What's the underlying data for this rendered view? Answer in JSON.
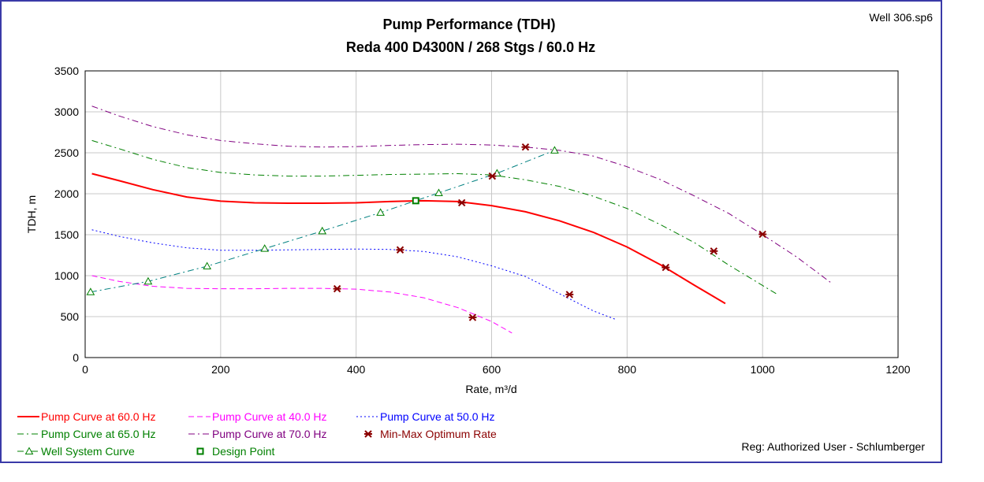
{
  "file_label": "Well 306.sp6",
  "footer": "Reg: Authorized User - Schlumberger",
  "chart_data": {
    "type": "line",
    "title": "Pump Performance (TDH)",
    "subtitle": "Reda 400 D4300N / 268 Stgs / 60.0 Hz",
    "xlabel": "Rate, m³/d",
    "ylabel": "TDH, m",
    "xlim": [
      0,
      1200
    ],
    "ylim": [
      0,
      3500
    ],
    "xticks": [
      0,
      200,
      400,
      600,
      800,
      1000,
      1200
    ],
    "yticks": [
      0,
      500,
      1000,
      1500,
      2000,
      2500,
      3000,
      3500
    ],
    "grid": true,
    "legend_position": "bottom",
    "series": [
      {
        "name": "Pump Curve at 60.0 Hz",
        "color": "#ff0000",
        "style": "solid",
        "x": [
          10,
          50,
          100,
          150,
          200,
          250,
          300,
          350,
          400,
          450,
          500,
          550,
          600,
          650,
          700,
          750,
          800,
          850,
          900,
          945
        ],
        "y": [
          2245,
          2160,
          2050,
          1960,
          1910,
          1890,
          1885,
          1885,
          1890,
          1905,
          1915,
          1905,
          1855,
          1780,
          1670,
          1530,
          1350,
          1130,
          880,
          660
        ]
      },
      {
        "name": "Pump Curve at 40.0 Hz",
        "color": "#ff00ff",
        "style": "dash",
        "x": [
          10,
          50,
          100,
          150,
          200,
          250,
          300,
          350,
          400,
          450,
          500,
          550,
          600,
          630
        ],
        "y": [
          1000,
          930,
          870,
          845,
          840,
          840,
          845,
          845,
          835,
          800,
          730,
          610,
          440,
          300
        ]
      },
      {
        "name": "Pump Curve at 50.0 Hz",
        "color": "#0000ff",
        "style": "dot",
        "x": [
          10,
          50,
          100,
          150,
          200,
          250,
          300,
          350,
          400,
          450,
          500,
          550,
          600,
          650,
          700,
          750,
          785
        ],
        "y": [
          1560,
          1480,
          1400,
          1340,
          1310,
          1310,
          1315,
          1320,
          1325,
          1320,
          1295,
          1230,
          1120,
          990,
          780,
          570,
          460
        ]
      },
      {
        "name": "Pump Curve at 65.0 Hz",
        "color": "#008000",
        "style": "dashdot",
        "x": [
          10,
          50,
          100,
          150,
          200,
          250,
          300,
          350,
          400,
          450,
          500,
          550,
          600,
          650,
          700,
          750,
          800,
          850,
          900,
          950,
          1000,
          1020
        ],
        "y": [
          2650,
          2550,
          2420,
          2320,
          2260,
          2230,
          2215,
          2215,
          2225,
          2235,
          2240,
          2245,
          2230,
          2170,
          2090,
          1970,
          1820,
          1620,
          1400,
          1130,
          880,
          780
        ]
      },
      {
        "name": "Pump Curve at 70.0 Hz",
        "color": "#800080",
        "style": "dashdot",
        "x": [
          10,
          50,
          100,
          150,
          200,
          250,
          300,
          350,
          400,
          450,
          500,
          550,
          600,
          650,
          700,
          750,
          800,
          850,
          900,
          950,
          1000,
          1050,
          1100
        ],
        "y": [
          3070,
          2950,
          2820,
          2720,
          2650,
          2610,
          2580,
          2570,
          2575,
          2590,
          2600,
          2605,
          2595,
          2570,
          2530,
          2460,
          2330,
          2170,
          1970,
          1760,
          1500,
          1230,
          920
        ]
      },
      {
        "name": "Well System Curve",
        "color": "#008080",
        "marker_color": "#008000",
        "style": "dashdot-triangle",
        "x": [
          8,
          93,
          180,
          265,
          350,
          436,
          522,
          608,
          693
        ],
        "y": [
          800,
          930,
          1115,
          1330,
          1545,
          1770,
          2010,
          2250,
          2530
        ]
      }
    ],
    "min_max_optimum_rate": {
      "name": "Min-Max Optimum Rate",
      "color": "#8b0000",
      "x": [
        372,
        465,
        556,
        572,
        601,
        650,
        715,
        857,
        928,
        1000
      ],
      "y": [
        840,
        1315,
        1890,
        490,
        2215,
        2570,
        770,
        1100,
        1300,
        1505
      ]
    },
    "design_point": {
      "name": "Design Point",
      "color": "#008000",
      "x": [
        488
      ],
      "y": [
        1915
      ]
    }
  },
  "legend": [
    {
      "label": "Pump Curve at 60.0 Hz",
      "color": "#ff0000",
      "style": "solid"
    },
    {
      "label": "Pump Curve at 40.0 Hz",
      "color": "#ff00ff",
      "style": "dash"
    },
    {
      "label": "Pump Curve at 50.0 Hz",
      "color": "#0000ff",
      "style": "dot"
    },
    {
      "label": "Pump Curve at 65.0 Hz",
      "color": "#008000",
      "style": "dashdot"
    },
    {
      "label": "Pump Curve at 70.0 Hz",
      "color": "#800080",
      "style": "dashdot"
    },
    {
      "label": "Min-Max Optimum Rate",
      "color": "#8b0000",
      "style": "star"
    },
    {
      "label": "Well System Curve",
      "color": "#008000",
      "style": "triangle"
    },
    {
      "label": "Design Point",
      "color": "#008000",
      "style": "square"
    }
  ]
}
